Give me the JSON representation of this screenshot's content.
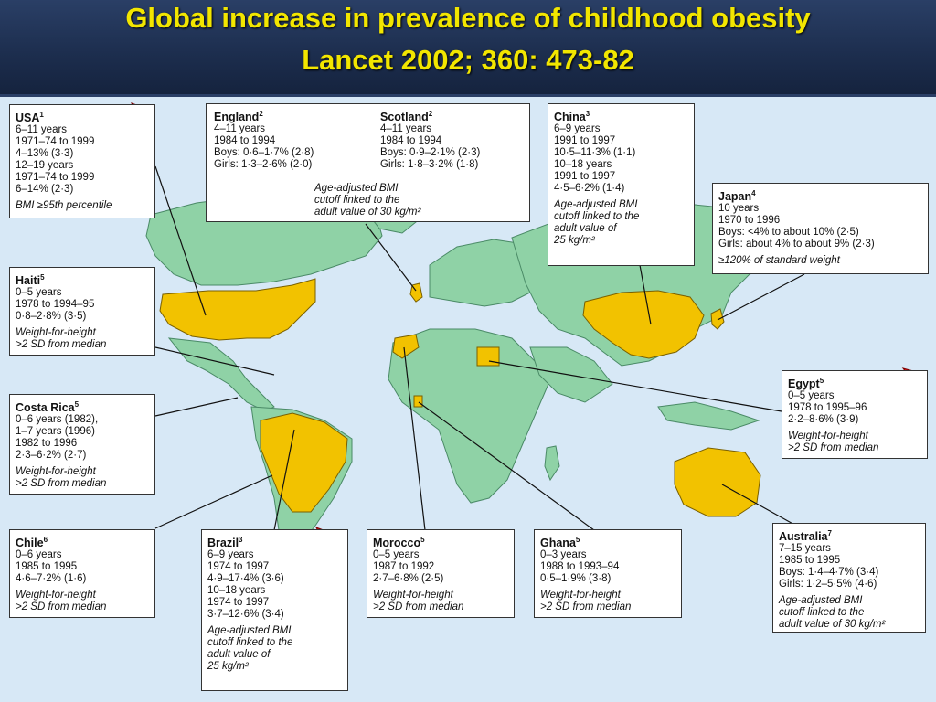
{
  "title": {
    "line1": "Global increase in prevalence of childhood obesity",
    "line2": "Lancet 2002; 360: 473-82"
  },
  "colors": {
    "highlight_country": "#f2c200",
    "land": "#8fd2a6",
    "ocean": "#d7e8f6",
    "title": "#f2e600",
    "arrow": "#e01010"
  },
  "regions": {
    "usa": {
      "name": "USA",
      "sup": "1",
      "lines": [
        "6–11 years",
        "1971–74 to 1999",
        "4–13% (3·3)"
      ],
      "lines2": [
        "12–19 years",
        "1971–74 to 1999",
        "6–14% (2·3)"
      ],
      "note": "BMI ≥95th percentile"
    },
    "england": {
      "name": "England",
      "sup": "2",
      "lines": [
        "4–11 years",
        "1984 to 1994",
        "Boys: 0·6–1·7% (2·8)",
        "Girls: 1·3–2·6% (2·0)"
      ]
    },
    "scotland": {
      "name": "Scotland",
      "sup": "2",
      "lines": [
        "4–11 years",
        "1984 to 1994",
        "Boys: 0·9–2·1% (2·3)",
        "Girls: 1·8–3·2% (1·8)"
      ]
    },
    "uk_note": [
      "Age-adjusted BMI",
      "cutoff linked to the",
      "adult value of 30 kg/m²"
    ],
    "china": {
      "name": "China",
      "sup": "3",
      "lines": [
        "6–9 years",
        "1991 to 1997",
        "10·5–11·3% (1·1)",
        "10–18 years",
        "1991 to 1997",
        "4·5–6·2% (1·4)"
      ],
      "note": [
        "Age-adjusted BMI",
        "cutoff linked to the",
        "adult value of",
        "25 kg/m²"
      ]
    },
    "japan": {
      "name": "Japan",
      "sup": "4",
      "lines": [
        "10 years",
        "1970 to 1996",
        "Boys: <4% to about 10% (2·5)",
        "Girls: about 4% to about 9% (2·3)"
      ],
      "note": "≥120% of standard weight"
    },
    "haiti": {
      "name": "Haiti",
      "sup": "5",
      "lines": [
        "0–5 years",
        "1978 to 1994–95",
        "0·8–2·8% (3·5)"
      ],
      "note": [
        "Weight-for-height",
        ">2 SD from median"
      ]
    },
    "costa_rica": {
      "name": "Costa Rica",
      "sup": "5",
      "lines": [
        "0–6 years (1982),",
        "1–7 years (1996)",
        "1982 to 1996",
        "2·3–6·2% (2·7)"
      ],
      "note": [
        "Weight-for-height",
        ">2 SD from median"
      ]
    },
    "egypt": {
      "name": "Egypt",
      "sup": "5",
      "lines": [
        "0–5 years",
        "1978 to 1995–96",
        "2·2–8·6% (3·9)"
      ],
      "note": [
        "Weight-for-height",
        ">2 SD from median"
      ]
    },
    "chile": {
      "name": "Chile",
      "sup": "6",
      "lines": [
        "0–6 years",
        "1985 to 1995",
        "4·6–7·2% (1·6)"
      ],
      "note": [
        "Weight-for-height",
        ">2 SD from median"
      ]
    },
    "brazil": {
      "name": "Brazil",
      "sup": "3",
      "lines": [
        "6–9 years",
        "1974 to 1997",
        "4·9–17·4% (3·6)",
        "10–18 years",
        "1974 to 1997",
        "3·7–12·6% (3·4)"
      ],
      "note": [
        "Age-adjusted BMI",
        "cutoff linked to the",
        "adult value of",
        "25 kg/m²"
      ]
    },
    "morocco": {
      "name": "Morocco",
      "sup": "5",
      "lines": [
        "0–5 years",
        "1987 to 1992",
        "2·7–6·8% (2·5)"
      ],
      "note": [
        "Weight-for-height",
        ">2 SD from median"
      ]
    },
    "ghana": {
      "name": "Ghana",
      "sup": "5",
      "lines": [
        "0–3 years",
        "1988 to 1993–94",
        "0·5–1·9% (3·8)"
      ],
      "note": [
        "Weight-for-height",
        ">2 SD from median"
      ]
    },
    "australia": {
      "name": "Australia",
      "sup": "7",
      "lines": [
        "7–15 years",
        "1985 to 1995",
        "Boys: 1·4–4·7% (3·4)",
        "Girls: 1·2–5·5% (4·6)"
      ],
      "note": [
        "Age-adjusted BMI",
        "cutoff linked to the",
        "adult value of 30 kg/m²"
      ]
    }
  }
}
